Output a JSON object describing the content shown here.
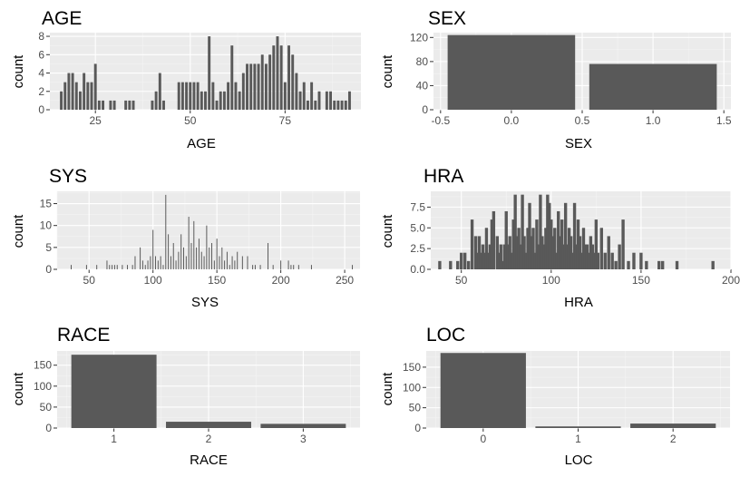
{
  "colors": {
    "panel": "#ebebeb",
    "grid_major": "#ffffff",
    "grid_minor": "#f4f4f4",
    "bar": "#595959",
    "tick_text": "#4d4d4d",
    "axis_tick": "#333333"
  },
  "chart_data": [
    {
      "type": "bar",
      "title": "AGE",
      "xlabel": "AGE",
      "ylabel": "count",
      "xlim": [
        13,
        95
      ],
      "ylim": [
        0,
        8.4
      ],
      "bar_width": 0.7,
      "x_ticks": [
        25,
        50,
        75
      ],
      "y_ticks": [
        0,
        2,
        4,
        6,
        8
      ],
      "x": [
        16,
        17,
        18,
        19,
        20,
        21,
        22,
        23,
        24,
        25,
        26,
        27,
        29,
        30,
        33,
        34,
        35,
        40,
        41,
        42,
        43,
        47,
        48,
        49,
        50,
        51,
        52,
        53,
        54,
        55,
        56,
        57,
        58,
        59,
        60,
        61,
        62,
        63,
        64,
        65,
        66,
        67,
        68,
        69,
        70,
        71,
        72,
        73,
        74,
        75,
        76,
        77,
        78,
        79,
        80,
        81,
        82,
        83,
        84,
        86,
        87,
        88,
        89,
        90,
        91,
        92
      ],
      "values": [
        2,
        3,
        4,
        4,
        3,
        2,
        4,
        3,
        3,
        5,
        1,
        1,
        1,
        1,
        1,
        1,
        1,
        1,
        2,
        4,
        1,
        3,
        3,
        3,
        3,
        3,
        3,
        2,
        2,
        8,
        3,
        1,
        2,
        2,
        3,
        7,
        3,
        2,
        4,
        5,
        5,
        5,
        5,
        6,
        5,
        6,
        7,
        8,
        7,
        3,
        7,
        6,
        4,
        2,
        3,
        1,
        3,
        1,
        2,
        2,
        2,
        1,
        1,
        1,
        1,
        2
      ]
    },
    {
      "type": "bar",
      "title": "SEX",
      "xlabel": "SEX",
      "ylabel": "count",
      "xlim": [
        -0.55,
        1.55
      ],
      "ylim": [
        0,
        128
      ],
      "bar_width": 0.9,
      "x_ticks": [
        -0.5,
        0.0,
        0.5,
        1.0,
        1.5
      ],
      "x_tick_labels": [
        "-0.5",
        "0.0",
        "0.5",
        "1.0",
        "1.5"
      ],
      "y_ticks": [
        0,
        40,
        80,
        120
      ],
      "x": [
        0,
        1
      ],
      "values": [
        124,
        76
      ]
    },
    {
      "type": "bar",
      "title": "SYS",
      "xlabel": "SYS",
      "ylabel": "count",
      "xlim": [
        25,
        262
      ],
      "ylim": [
        0,
        17.8
      ],
      "bar_width": 0.7,
      "x_ticks": [
        50,
        100,
        150,
        200,
        250
      ],
      "y_ticks": [
        0,
        5,
        10,
        15
      ],
      "x": [
        36,
        48,
        56,
        64,
        66,
        68,
        70,
        72,
        76,
        80,
        84,
        86,
        90,
        92,
        94,
        96,
        98,
        100,
        102,
        104,
        106,
        108,
        110,
        112,
        114,
        116,
        118,
        120,
        122,
        124,
        126,
        128,
        130,
        132,
        134,
        136,
        138,
        140,
        142,
        144,
        146,
        148,
        150,
        152,
        154,
        156,
        158,
        160,
        162,
        164,
        166,
        170,
        174,
        178,
        180,
        184,
        190,
        194,
        200,
        206,
        208,
        210,
        214,
        224,
        256
      ],
      "values": [
        1,
        1,
        1,
        2,
        1,
        1,
        1,
        1,
        1,
        1,
        1,
        3,
        5,
        2,
        1,
        2,
        3,
        9,
        3,
        2,
        3,
        1,
        17,
        8,
        3,
        6,
        2,
        4,
        8,
        5,
        3,
        12,
        6,
        11,
        5,
        7,
        4,
        3,
        10,
        5,
        6,
        2,
        7,
        3,
        5,
        2,
        4,
        1,
        3,
        2,
        4,
        3,
        3,
        1,
        1,
        1,
        6,
        1,
        2,
        2,
        1,
        1,
        1,
        1,
        1
      ]
    },
    {
      "type": "bar",
      "title": "HRA",
      "xlabel": "HRA",
      "ylabel": "count",
      "xlim": [
        33,
        200
      ],
      "ylim": [
        0,
        9.4
      ],
      "bar_width": 1.7,
      "x_ticks": [
        50,
        100,
        150,
        200
      ],
      "y_ticks": [
        0,
        2.5,
        5,
        7.5
      ],
      "y_tick_labels": [
        "0.0",
        "2.5",
        "5.0",
        "7.5"
      ],
      "x": [
        38,
        44,
        48,
        50,
        52,
        54,
        56,
        58,
        59,
        60,
        61,
        62,
        63,
        64,
        65,
        66,
        67,
        68,
        70,
        71,
        72,
        73,
        74,
        75,
        76,
        77,
        78,
        79,
        80,
        81,
        82,
        83,
        84,
        85,
        86,
        87,
        88,
        89,
        90,
        91,
        92,
        93,
        94,
        95,
        96,
        97,
        98,
        99,
        100,
        101,
        102,
        103,
        104,
        105,
        106,
        107,
        108,
        109,
        110,
        111,
        112,
        113,
        114,
        115,
        116,
        117,
        118,
        119,
        120,
        121,
        122,
        123,
        124,
        125,
        126,
        128,
        130,
        132,
        134,
        136,
        138,
        140,
        143,
        146,
        150,
        153,
        160,
        162,
        170,
        190
      ],
      "values": [
        1,
        1,
        1,
        2,
        2,
        1,
        6,
        4,
        2,
        4,
        2,
        3,
        2,
        5,
        2,
        3,
        6,
        7,
        4,
        2,
        3,
        1,
        3,
        7,
        3,
        4,
        2,
        6,
        9,
        4,
        5,
        3,
        9,
        4,
        2,
        5,
        8,
        4,
        5,
        2,
        6,
        3,
        9,
        4,
        3,
        5,
        9,
        8,
        6,
        4,
        5,
        2,
        7,
        4,
        6,
        3,
        8,
        3,
        5,
        4,
        2,
        8,
        3,
        6,
        4,
        2,
        5,
        3,
        3,
        2,
        4,
        3,
        2,
        6,
        2,
        5,
        2,
        4,
        2,
        1,
        3,
        6,
        1,
        2,
        2,
        1,
        1,
        1,
        1,
        1
      ]
    },
    {
      "type": "bar",
      "title": "RACE",
      "xlabel": "RACE",
      "ylabel": "count",
      "xlim": [
        0.4,
        3.6
      ],
      "ylim": [
        0,
        184
      ],
      "bar_width": 0.9,
      "x_ticks": [
        1,
        2,
        3
      ],
      "y_ticks": [
        0,
        50,
        100,
        150
      ],
      "x": [
        1,
        2,
        3
      ],
      "values": [
        175,
        15,
        10
      ]
    },
    {
      "type": "bar",
      "title": "LOC",
      "xlabel": "LOC",
      "ylabel": "count",
      "xlim": [
        -0.6,
        2.6
      ],
      "ylim": [
        0,
        190
      ],
      "bar_width": 0.9,
      "x_ticks": [
        0,
        1,
        2
      ],
      "y_ticks": [
        0,
        50,
        100,
        150
      ],
      "x": [
        0,
        1,
        2
      ],
      "values": [
        185,
        4,
        11
      ]
    }
  ]
}
